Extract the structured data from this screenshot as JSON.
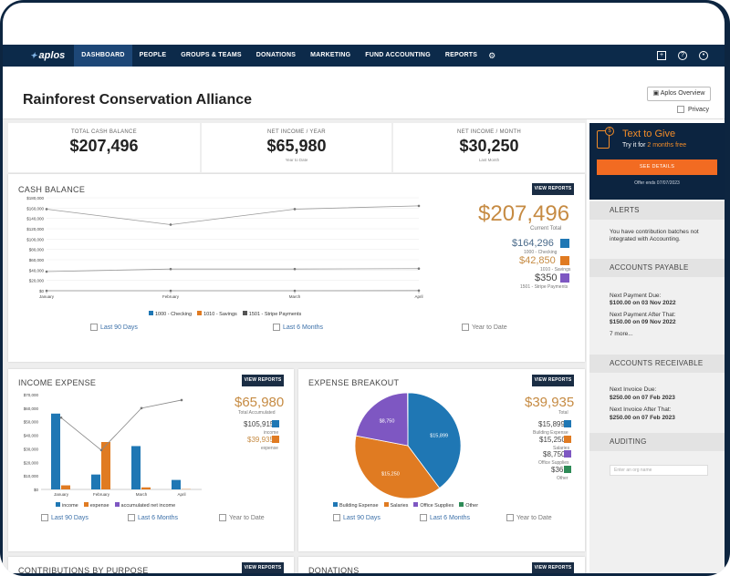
{
  "window": {
    "dots": [
      "dot-1",
      "dot-2",
      "dot-3"
    ]
  },
  "nav": {
    "logo": "aplos",
    "items": [
      "DASHBOARD",
      "PEOPLE",
      "GROUPS & TEAMS",
      "DONATIONS",
      "MARKETING",
      "FUND ACCOUNTING",
      "REPORTS"
    ],
    "active": "DASHBOARD",
    "right_icons": [
      "plus-square-icon",
      "help-icon",
      "user-icon"
    ]
  },
  "header": {
    "title": "Rainforest Conservation Alliance",
    "overview_button": "Aplos Overview",
    "privacy_label": "Privacy"
  },
  "stats": [
    {
      "label": "TOTAL CASH BALANCE",
      "value": "$207,496",
      "sub": ""
    },
    {
      "label": "NET INCOME / YEAR",
      "value": "$65,980",
      "sub": "Year to Date"
    },
    {
      "label": "NET INCOME / MONTH",
      "value": "$30,250",
      "sub": "Last Month"
    }
  ],
  "cash_balance": {
    "title": "CASH BALANCE",
    "view_reports": "VIEW REPORTS",
    "total": "$207,496",
    "total_label": "Current Total",
    "accounts": [
      {
        "value": "$164,296",
        "label": "1000 - Checking",
        "color": "#1f77b4"
      },
      {
        "value": "$42,850",
        "label": "1010 - Savings",
        "color": "#e07b22"
      },
      {
        "value": "$350",
        "label": "1501 - Stripe Payments",
        "color": "#7e57c2"
      }
    ],
    "filters": [
      "Last 90 Days",
      "Last 6 Months",
      "Year to Date"
    ],
    "legend": [
      "1000 - Checking",
      "1010 - Savings",
      "1501 - Stripe Payments"
    ]
  },
  "income_expense": {
    "title": "INCOME EXPENSE",
    "view_reports": "VIEW REPORTS",
    "total": "$65,980",
    "total_label": "Total Accumulated",
    "items": [
      {
        "value": "$105,915",
        "label": "income",
        "color": "#1f77b4"
      },
      {
        "value": "$39,935",
        "label": "expense",
        "color": "#e07b22"
      }
    ],
    "filters": [
      "Last 90 Days",
      "Last 6 Months",
      "Year to Date"
    ],
    "legend": [
      "income",
      "expense",
      "accumulated net income"
    ]
  },
  "expense_breakout": {
    "title": "EXPENSE BREAKOUT",
    "view_reports": "VIEW REPORTS",
    "total": "$39,935",
    "total_label": "Total",
    "items": [
      {
        "value": "$15,899",
        "label": "Building Expense",
        "color": "#1f77b4"
      },
      {
        "value": "$15,250",
        "label": "Salaries",
        "color": "#e07b22"
      },
      {
        "value": "$8,750",
        "label": "Office Supplies",
        "color": "#7e57c2"
      },
      {
        "value": "$36",
        "label": "Other",
        "color": "#2e8b57"
      }
    ],
    "filters": [
      "Last 90 Days",
      "Last 6 Months",
      "Year to Date"
    ],
    "legend": [
      "Building Expense",
      "Salaries",
      "Office Supplies",
      "Other"
    ]
  },
  "bottom_cards": [
    {
      "title": "CONTRIBUTIONS BY PURPOSE",
      "view_reports": "VIEW REPORTS"
    },
    {
      "title": "DONATIONS",
      "view_reports": "VIEW REPORTS"
    }
  ],
  "sidebar": {
    "text_to_give": {
      "title": "Text to Give",
      "sub_prefix": "Try it for",
      "sub_highlight": "2 months free",
      "button": "SEE DETAILS",
      "offer": "Offer ends 07/07/2023"
    },
    "alerts": {
      "title": "ALERTS",
      "text": "You have contribution batches not integrated with Accounting."
    },
    "payable": {
      "title": "ACCOUNTS PAYABLE",
      "next_label": "Next Payment Due:",
      "next_value": "$100.00 on 03 Nov 2022",
      "after_label": "Next Payment After That:",
      "after_value": "$150.00 on 09 Nov 2022",
      "more": "7 more..."
    },
    "receivable": {
      "title": "ACCOUNTS RECEIVABLE",
      "next_label": "Next Invoice Due:",
      "next_value": "$250.00 on 07 Feb 2023",
      "after_label": "Next Invoice After That:",
      "after_value": "$250.00 on 07 Feb 2023"
    },
    "auditing": {
      "title": "AUDITING",
      "placeholder": "Enter an org name"
    }
  },
  "chart_data": [
    {
      "type": "line",
      "title": "CASH BALANCE",
      "categories": [
        "January",
        "February",
        "March",
        "April"
      ],
      "ylim": [
        0,
        180000
      ],
      "yticks": [
        "$0",
        "$20,000",
        "$40,000",
        "$60,000",
        "$80,000",
        "$100,000",
        "$120,000",
        "$140,000",
        "$160,000",
        "$180,000"
      ],
      "series": [
        {
          "name": "1000 - Checking",
          "values": [
            158000,
            128000,
            158000,
            164296
          ]
        },
        {
          "name": "1010 - Savings",
          "values": [
            37000,
            42000,
            42000,
            42850
          ]
        },
        {
          "name": "1501 - Stripe Payments",
          "values": [
            0,
            0,
            0,
            350
          ]
        }
      ]
    },
    {
      "type": "bar",
      "title": "INCOME EXPENSE",
      "categories": [
        "January",
        "February",
        "March",
        "April"
      ],
      "ylim": [
        0,
        70000
      ],
      "yticks": [
        "$0",
        "$10,000",
        "$20,000",
        "$30,000",
        "$40,000",
        "$50,000",
        "$60,000",
        "$70,000"
      ],
      "series": [
        {
          "name": "income",
          "values": [
            56000,
            11000,
            32000,
            7000
          ]
        },
        {
          "name": "expense",
          "values": [
            3000,
            35000,
            1500,
            200
          ]
        },
        {
          "name": "accumulated net income",
          "values": [
            53000,
            29000,
            60000,
            66000
          ]
        }
      ]
    },
    {
      "type": "pie",
      "title": "EXPENSE BREAKOUT",
      "categories": [
        "Building Expense",
        "Salaries",
        "Office Supplies",
        "Other"
      ],
      "values": [
        15899,
        15250,
        8750,
        36
      ],
      "labels": [
        "$15,899",
        "$15,250",
        "$8,750",
        ""
      ]
    }
  ]
}
